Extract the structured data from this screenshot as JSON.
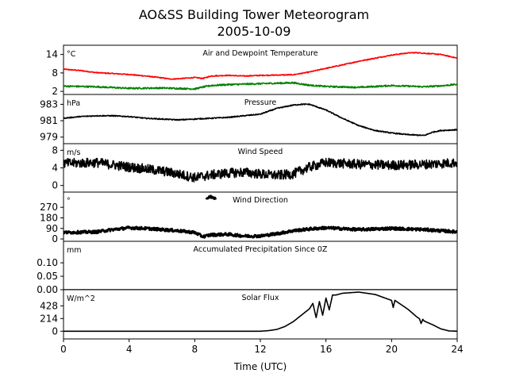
{
  "figure": {
    "title_line1": "AO&SS Building Tower Meteorogram",
    "title_line2": "2005-10-09",
    "xlabel": "Time (UTC)",
    "xticks": [
      "0",
      "4",
      "8",
      "12",
      "16",
      "20",
      "24"
    ]
  },
  "chart_data": [
    {
      "type": "line",
      "title": "Air and Dewpoint Temperature",
      "unit": "°C",
      "ylim": [
        1,
        17
      ],
      "yticks": [
        2,
        8,
        14
      ],
      "series": [
        {
          "color": "#ff0000",
          "noise": 0.15,
          "x": [
            0,
            1,
            2,
            3,
            4,
            5,
            6,
            6.5,
            7,
            8,
            8.5,
            9,
            10,
            11,
            12,
            13,
            14,
            15,
            16,
            17,
            18,
            19,
            20,
            21,
            21.5,
            22,
            23,
            24
          ],
          "y": [
            9.2,
            8.8,
            8.1,
            7.8,
            7.5,
            7.0,
            6.4,
            6.0,
            6.1,
            6.5,
            6.2,
            7.0,
            7.2,
            7.0,
            7.2,
            7.3,
            7.4,
            8.3,
            9.5,
            10.6,
            11.8,
            12.8,
            13.8,
            14.5,
            14.6,
            14.4,
            14.0,
            12.8
          ]
        },
        {
          "color": "#008000",
          "noise": 0.25,
          "x": [
            0,
            2,
            4,
            6,
            8,
            8.5,
            9,
            10,
            12,
            14,
            15,
            16,
            18,
            20,
            22,
            23,
            24
          ],
          "y": [
            3.7,
            3.5,
            3.0,
            3.1,
            2.8,
            3.4,
            3.9,
            4.2,
            4.5,
            4.8,
            4.0,
            3.6,
            3.3,
            3.9,
            3.5,
            3.8,
            4.3
          ]
        }
      ]
    },
    {
      "type": "line",
      "title": "Pressure",
      "unit": "hPa",
      "ylim": [
        978.2,
        984.2
      ],
      "yticks": [
        979,
        981,
        983
      ],
      "series": [
        {
          "color": "#000000",
          "noise": 0.06,
          "x": [
            0,
            1,
            2,
            3,
            4,
            5,
            6,
            7,
            8,
            9,
            10,
            11,
            12,
            13,
            14,
            14.5,
            15,
            16,
            17,
            18,
            19,
            20,
            21,
            22,
            22.5,
            23,
            24
          ],
          "y": [
            981.3,
            981.5,
            981.6,
            981.6,
            981.5,
            981.3,
            981.2,
            981.1,
            981.2,
            981.3,
            981.4,
            981.6,
            981.8,
            982.5,
            982.9,
            983.0,
            983.0,
            982.3,
            981.3,
            980.4,
            979.8,
            979.5,
            979.3,
            979.2,
            979.6,
            979.8,
            979.9
          ]
        }
      ]
    },
    {
      "type": "line",
      "title": "Wind Speed",
      "unit": "m/s",
      "ylim": [
        -1.5,
        9.5
      ],
      "yticks": [
        0,
        4,
        8
      ],
      "series": [
        {
          "color": "#000000",
          "noise": 1.1,
          "x": [
            0,
            2,
            4,
            6,
            7,
            8,
            9,
            10,
            11,
            12,
            13,
            14,
            15,
            16,
            18,
            20,
            22,
            24
          ],
          "y": [
            5.0,
            5.2,
            4.2,
            3.3,
            2.6,
            1.8,
            2.4,
            2.8,
            3.0,
            2.6,
            2.3,
            2.6,
            4.2,
            5.2,
            4.8,
            4.6,
            4.8,
            5.2
          ]
        }
      ]
    },
    {
      "type": "scatter",
      "title": "Wind Direction",
      "unit": "°",
      "ylim": [
        -20,
        400
      ],
      "yticks": [
        0,
        90,
        180,
        270
      ],
      "series": [
        {
          "color": "#000000",
          "noise": 12,
          "x": [
            0,
            2,
            3,
            4,
            5,
            6,
            7,
            8,
            8.5,
            9,
            10,
            11,
            12,
            13,
            14,
            15,
            16,
            18,
            20,
            22,
            24
          ],
          "y": [
            55,
            60,
            80,
            95,
            90,
            80,
            70,
            55,
            20,
            35,
            40,
            25,
            25,
            45,
            70,
            85,
            95,
            80,
            90,
            80,
            60
          ]
        },
        {
          "color": "#000000",
          "noise": 10,
          "x": [
            8.7,
            9.0,
            9.3
          ],
          "y": [
            350,
            360,
            345
          ]
        }
      ]
    },
    {
      "type": "line",
      "title": "Accumulated Precipitation Since 0Z",
      "unit": "mm",
      "ylim": [
        0,
        0.18
      ],
      "yticks": [
        0.0,
        0.05,
        0.1
      ],
      "ytick_labels": [
        "0.00",
        "0.05",
        "0.10"
      ],
      "series": [
        {
          "color": "#000000",
          "noise": 0,
          "x": [
            0,
            24
          ],
          "y": [
            0,
            0
          ]
        }
      ]
    },
    {
      "type": "line",
      "title": "Solar Flux",
      "unit": "W/m^2",
      "ylim": [
        -130,
        700
      ],
      "yticks": [
        0,
        214,
        428
      ],
      "series": [
        {
          "color": "#000000",
          "noise": 0,
          "x": [
            0,
            12,
            12.5,
            13,
            13.5,
            14,
            14.5,
            15,
            15.2,
            15.4,
            15.6,
            15.8,
            16,
            16.2,
            16.4,
            16.6,
            17,
            18,
            19,
            20,
            20.1,
            20.2,
            21,
            21.5,
            21.7,
            21.8,
            21.9,
            22,
            22.5,
            23,
            23.5,
            24
          ],
          "y": [
            0,
            0,
            10,
            30,
            80,
            160,
            270,
            380,
            470,
            230,
            500,
            270,
            560,
            360,
            610,
            610,
            640,
            660,
            620,
            520,
            400,
            520,
            370,
            250,
            210,
            130,
            200,
            170,
            110,
            40,
            5,
            0
          ]
        }
      ]
    }
  ]
}
